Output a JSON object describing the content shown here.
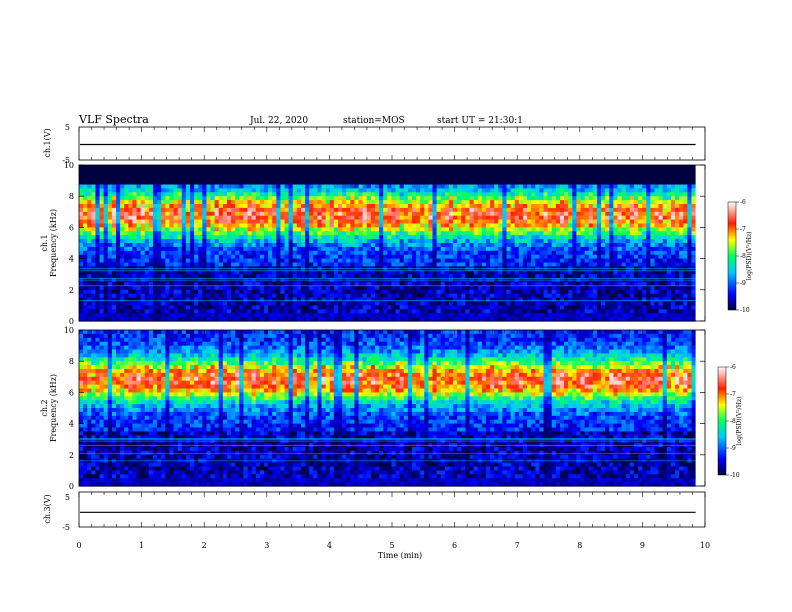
{
  "header": {
    "title": "VLF Spectra",
    "date": "Jul. 22, 2020",
    "station": "station=MOS",
    "start": "start UT = 21:30:1"
  },
  "chart_data": [
    {
      "type": "line",
      "panel": "ch1-voltage",
      "ylabel": "ch.1(V)",
      "y_ticks": [
        "5",
        "-5"
      ],
      "ylim": [
        -5,
        5
      ],
      "xlim": [
        0,
        10
      ],
      "series": [
        {
          "values_level": -0.3,
          "x_end": 9.85
        }
      ]
    },
    {
      "type": "heatmap",
      "panel": "ch1-spectrogram",
      "ylabel": "ch.1",
      "ylabel2": "Frequency (kHz)",
      "y_ticks": [
        "0",
        "2",
        "4",
        "6",
        "8",
        "10"
      ],
      "ylim": [
        0,
        10
      ],
      "xlim": [
        0,
        10
      ],
      "x_end": 9.85,
      "colorbar": {
        "label": "log(PSD)(V²/Hz)",
        "ticks": [
          "-6",
          "-7",
          "-8",
          "-9",
          "-10"
        ],
        "range": [
          -10,
          -6
        ]
      }
    },
    {
      "type": "heatmap",
      "panel": "ch2-spectrogram",
      "ylabel": "ch.2",
      "ylabel2": "Frequency (kHz)",
      "y_ticks": [
        "0",
        "2",
        "4",
        "6",
        "8",
        "10"
      ],
      "ylim": [
        0,
        10
      ],
      "xlim": [
        0,
        10
      ],
      "x_end": 9.85,
      "colorbar": {
        "label": "log(PSD)(V²/Hz)",
        "ticks": [
          "-6",
          "-7",
          "-8",
          "-9",
          "-10"
        ],
        "range": [
          -10,
          -6
        ]
      }
    },
    {
      "type": "line",
      "panel": "ch3-voltage",
      "ylabel": "ch.3(V)",
      "y_ticks": [
        "5",
        "-5"
      ],
      "ylim": [
        -5,
        5
      ],
      "xlim": [
        0,
        10
      ],
      "series": [
        {
          "values_level": -0.8,
          "x_end": 9.85
        }
      ]
    }
  ],
  "x_axis": {
    "label": "Time (min)",
    "ticks": [
      "0",
      "1",
      "2",
      "3",
      "4",
      "5",
      "6",
      "7",
      "8",
      "9",
      "10"
    ]
  }
}
